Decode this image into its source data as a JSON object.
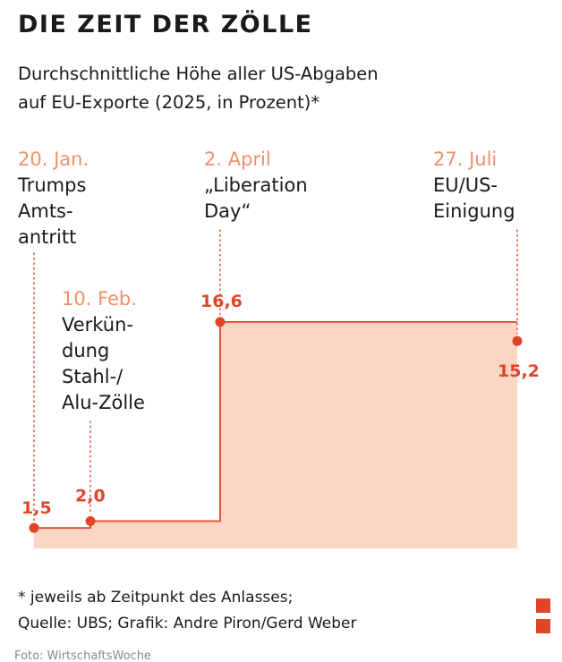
{
  "title": "DIE ZEIT DER ZÖLLE",
  "subtitle_lines": [
    "Durchschnittliche Höhe aller US-Abgaben",
    "auf EU-Exporte (2025, in Prozent)*"
  ],
  "footnote_lines": [
    "* jeweils ab Zeitpunkt des Anlasses;",
    "Quelle: UBS; Grafik: Andre Piron/Gerd Weber"
  ],
  "credit": "Foto: WirtschaftsWoche",
  "colors": {
    "accent": "#e0452a",
    "date": "#f0906a",
    "area_fill": "#fbd6c4",
    "text": "#1a1a1a",
    "credit": "#8a8a8a"
  },
  "chart_data": {
    "type": "area",
    "step": true,
    "title": "DIE ZEIT DER ZÖLLE",
    "ylabel": "Prozent",
    "ylim": [
      0,
      18
    ],
    "points": [
      {
        "date": "20. Jan.",
        "event_lines": [
          "Trumps",
          "Amts-",
          "antritt"
        ],
        "value": 1.5,
        "value_label": "1,5"
      },
      {
        "date": "10. Feb.",
        "event_lines": [
          "Verkün-",
          "dung",
          "Stahl-/",
          "Alu-Zölle"
        ],
        "value": 2.0,
        "value_label": "2,0"
      },
      {
        "date": "2. April",
        "event_lines": [
          "„Liberation",
          "Day“"
        ],
        "value": 16.6,
        "value_label": "16,6"
      },
      {
        "date": "27. Juli",
        "event_lines": [
          "EU/US-",
          "Einigung"
        ],
        "value": 15.2,
        "value_label": "15,2"
      }
    ]
  }
}
